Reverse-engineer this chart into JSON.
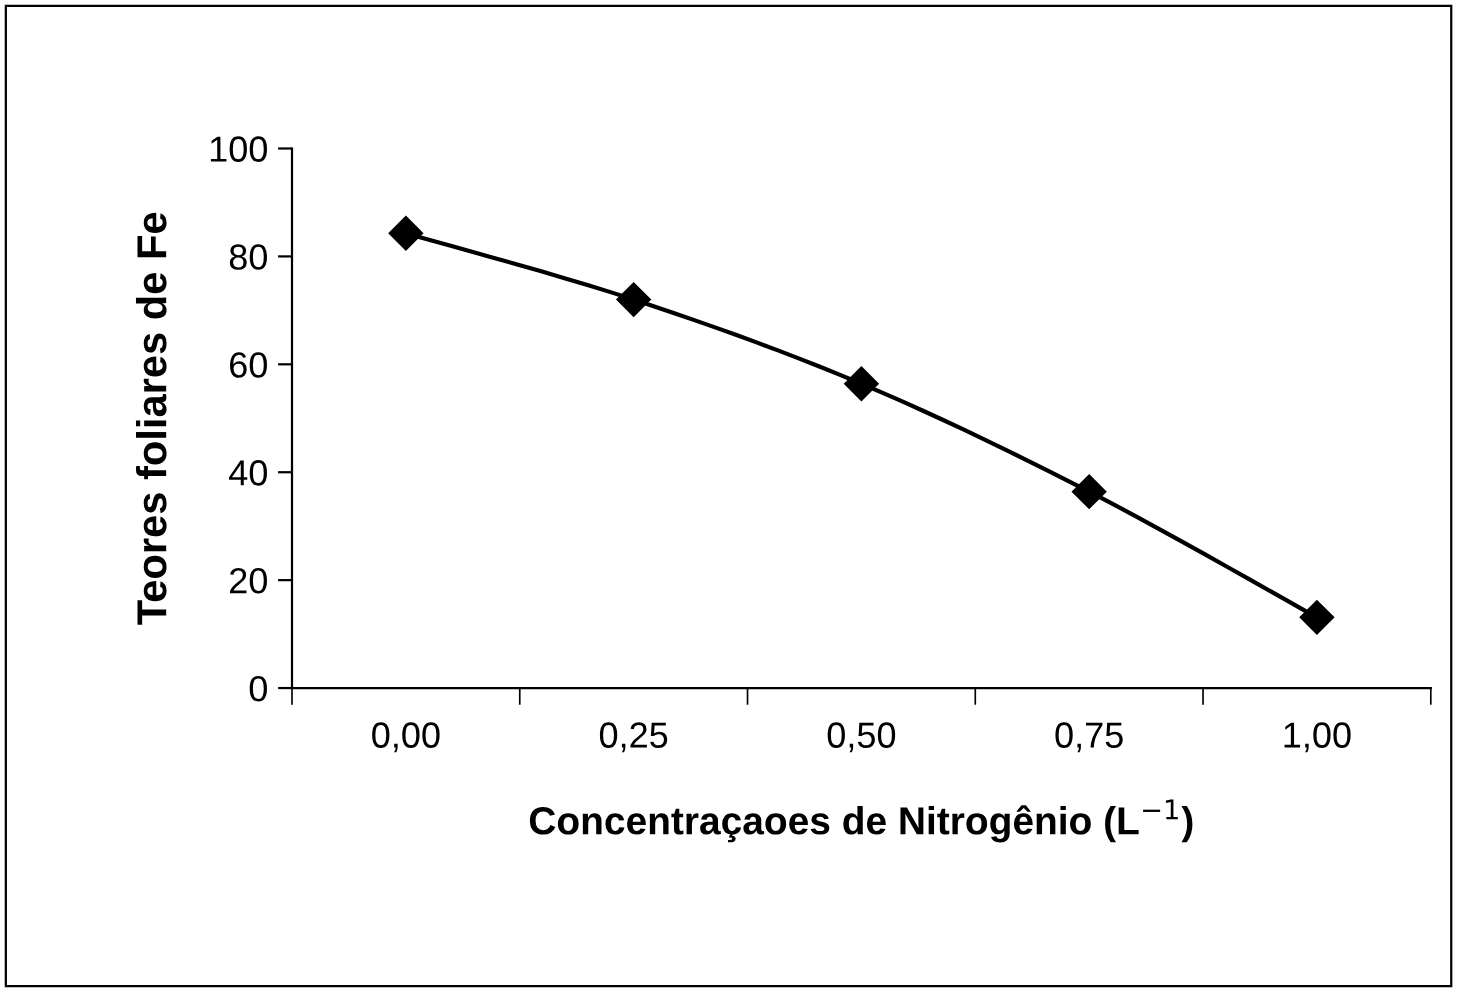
{
  "chart_data": {
    "type": "line",
    "xlabel": "Concentraçaoes de Nitrogênio (L$^{−1}$)",
    "ylabel": "Teores foliares de Fe",
    "categories": [
      "0,00",
      "0,25",
      "0,50",
      "0,75",
      "1,00"
    ],
    "series": [
      {
        "color": "#000000",
        "values": [
          84.3,
          72,
          56.4,
          36.4,
          13.1
        ]
      }
    ],
    "ylim": [
      0,
      100
    ],
    "yticks": [
      0,
      20,
      40,
      60,
      80,
      100
    ],
    "marker": "diamond",
    "line_style": "solid",
    "grid": false,
    "legend": false
  }
}
